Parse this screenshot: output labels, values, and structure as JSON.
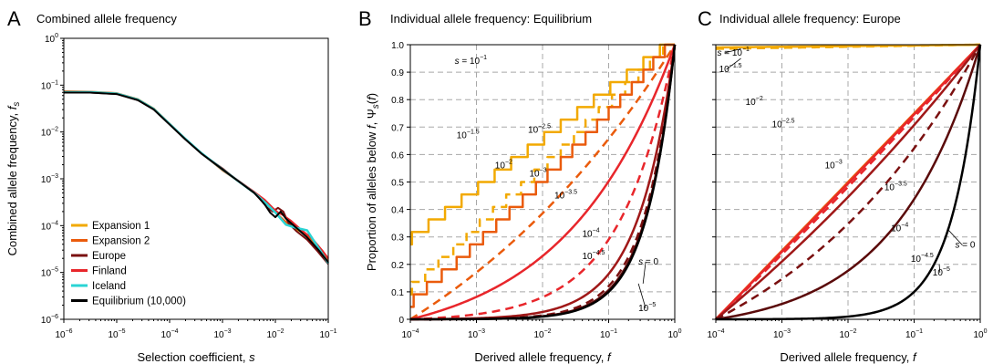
{
  "chart_data": [
    {
      "panel": "A",
      "type": "line",
      "title": "Combined allele frequency",
      "xlabel": "Selection coefficient, s",
      "ylabel": "Combined allele frequency, f",
      "ylabel_sub": "s",
      "x_scale": "log",
      "y_scale": "log",
      "xlim_exp": [
        -6,
        -1
      ],
      "ylim_exp": [
        -6,
        0
      ],
      "x_tick_exps": [
        -6,
        -5,
        -4,
        -3,
        -2,
        -1
      ],
      "y_tick_exps": [
        -6,
        -5,
        -4,
        -3,
        -2,
        -1,
        0
      ],
      "grid": false,
      "legend_position": "bottom-left",
      "series": [
        {
          "name": "Expansion 1",
          "color": "#f2a900",
          "width": 2,
          "log_x": [
            -6.0,
            -5.5,
            -5.0,
            -4.6,
            -4.3,
            -4.0,
            -3.7,
            -3.4,
            -3.0,
            -2.7,
            -2.4,
            -2.2,
            -2.0,
            -1.8,
            -1.6,
            -1.4,
            -1.2,
            -1.0
          ],
          "log_y": [
            -1.14,
            -1.15,
            -1.18,
            -1.3,
            -1.5,
            -1.83,
            -2.15,
            -2.45,
            -2.8,
            -3.05,
            -3.3,
            -3.5,
            -3.72,
            -3.95,
            -4.08,
            -4.2,
            -4.45,
            -4.75
          ]
        },
        {
          "name": "Expansion 2",
          "color": "#ea5b0c",
          "width": 2,
          "log_x": [
            -6.0,
            -5.5,
            -5.0,
            -4.6,
            -4.3,
            -4.0,
            -3.7,
            -3.4,
            -3.0,
            -2.7,
            -2.4,
            -2.2,
            -2.0,
            -1.8,
            -1.6,
            -1.4,
            -1.2,
            -1.0
          ],
          "log_y": [
            -1.13,
            -1.14,
            -1.17,
            -1.3,
            -1.5,
            -1.82,
            -2.15,
            -2.45,
            -2.82,
            -3.05,
            -3.3,
            -3.48,
            -3.72,
            -3.92,
            -4.05,
            -4.2,
            -4.5,
            -4.72
          ]
        },
        {
          "name": "Europe",
          "color": "#7a1010",
          "width": 2,
          "log_x": [
            -6.0,
            -5.5,
            -5.0,
            -4.6,
            -4.3,
            -4.0,
            -3.7,
            -3.4,
            -3.0,
            -2.7,
            -2.4,
            -2.25,
            -2.15,
            -2.05,
            -1.95,
            -1.85,
            -1.75,
            -1.6,
            -1.4,
            -1.2,
            -1.0
          ],
          "log_y": [
            -1.16,
            -1.16,
            -1.19,
            -1.32,
            -1.52,
            -1.84,
            -2.16,
            -2.46,
            -2.78,
            -3.05,
            -3.3,
            -3.48,
            -3.62,
            -3.7,
            -3.62,
            -3.7,
            -3.95,
            -4.12,
            -4.3,
            -4.55,
            -4.82
          ]
        },
        {
          "name": "Finland",
          "color": "#e8262b",
          "width": 2,
          "log_x": [
            -6.0,
            -5.5,
            -5.0,
            -4.6,
            -4.3,
            -4.0,
            -3.7,
            -3.4,
            -3.0,
            -2.7,
            -2.4,
            -2.2,
            -2.05,
            -1.95,
            -1.85,
            -1.7,
            -1.5,
            -1.3,
            -1.1,
            -1.0
          ],
          "log_y": [
            -1.15,
            -1.15,
            -1.18,
            -1.31,
            -1.51,
            -1.83,
            -2.15,
            -2.45,
            -2.8,
            -3.04,
            -3.28,
            -3.45,
            -3.62,
            -3.72,
            -3.78,
            -3.9,
            -4.1,
            -4.28,
            -4.55,
            -4.7
          ]
        },
        {
          "name": "Iceland",
          "color": "#2ad4d4",
          "width": 2.5,
          "log_x": [
            -6.0,
            -5.5,
            -5.0,
            -4.6,
            -4.3,
            -4.0,
            -3.7,
            -3.4,
            -3.0,
            -2.7,
            -2.4,
            -2.2,
            -2.0,
            -1.8,
            -1.6,
            -1.4,
            -1.2,
            -1.0
          ],
          "log_y": [
            -1.15,
            -1.15,
            -1.18,
            -1.31,
            -1.51,
            -1.83,
            -2.15,
            -2.45,
            -2.8,
            -3.05,
            -3.3,
            -3.5,
            -3.72,
            -3.98,
            -4.05,
            -4.1,
            -4.45,
            -4.8
          ]
        },
        {
          "name": "Equilibrium (10,000)",
          "color": "#000000",
          "width": 2,
          "log_x": [
            -6.0,
            -5.5,
            -5.0,
            -4.6,
            -4.3,
            -4.0,
            -3.7,
            -3.4,
            -3.0,
            -2.7,
            -2.4,
            -2.3,
            -2.2,
            -2.1,
            -2.0,
            -1.9,
            -1.8,
            -1.6,
            -1.4,
            -1.2,
            -1.0
          ],
          "log_y": [
            -1.16,
            -1.16,
            -1.19,
            -1.32,
            -1.52,
            -1.84,
            -2.16,
            -2.46,
            -2.8,
            -3.05,
            -3.3,
            -3.42,
            -3.55,
            -3.72,
            -3.82,
            -3.7,
            -3.85,
            -4.05,
            -4.25,
            -4.5,
            -4.78
          ]
        }
      ]
    },
    {
      "panel": "B",
      "type": "line",
      "title": "Individual allele frequency: Equilibrium",
      "xlabel": "Derived allele frequency, f",
      "ylabel": "Proportion of alleles below f, Ψ",
      "ylabel_sub": "s",
      "ylabel_tail": "(f)",
      "x_scale": "log",
      "y_scale": "linear",
      "xlim_exp": [
        -4,
        0
      ],
      "ylim": [
        0,
        1
      ],
      "x_tick_exps": [
        -4,
        -3,
        -2,
        -1,
        0
      ],
      "y_ticks": [
        "0",
        "0.1",
        "0.2",
        "0.3",
        "0.4",
        "0.5",
        "0.6",
        "0.7",
        "0.8",
        "0.9",
        "1.0"
      ],
      "grid": true,
      "curve_form": "y = (f^k - 0.0001^k) / (1 - 0.0001^k); k = 1 / (1 + 10^(log_s - c))",
      "series": [
        {
          "name": "s = 10^-1",
          "log_s": -1,
          "c": -3.45,
          "color": "#f2a900",
          "dash": false,
          "width": 2.5,
          "step": true,
          "min_y": 0.27
        },
        {
          "name": "s = 10^-1.5",
          "log_s": -1.5,
          "c": -3.45,
          "color": "#f2a900",
          "dash": true,
          "width": 2.5,
          "step": true,
          "min_y": 0.09
        },
        {
          "name": "s = 10^-2",
          "log_s": -2,
          "c": -3.45,
          "color": "#ea5b0c",
          "dash": false,
          "width": 2.5,
          "step": true,
          "min_y": 0.04
        },
        {
          "name": "s = 10^-2.5",
          "log_s": -2.5,
          "c": -3.45,
          "color": "#ea5b0c",
          "dash": true,
          "width": 2.5,
          "step": false,
          "min_y": 0.0
        },
        {
          "name": "s = 10^-3",
          "log_s": -3,
          "c": -3.45,
          "color": "#e8262b",
          "dash": false,
          "width": 2.5,
          "step": false,
          "min_y": 0.0
        },
        {
          "name": "s = 10^-3.5",
          "log_s": -3.5,
          "c": -3.45,
          "color": "#e8262b",
          "dash": true,
          "width": 2.5,
          "step": false,
          "min_y": 0.0
        },
        {
          "name": "s = 10^-4",
          "log_s": -4,
          "c": -3.45,
          "color": "#a01818",
          "dash": false,
          "width": 2.5,
          "step": false,
          "min_y": 0.0
        },
        {
          "name": "s = 10^-4.5",
          "log_s": -4.5,
          "c": -3.45,
          "color": "#7a1010",
          "dash": true,
          "width": 2.5,
          "step": false,
          "min_y": 0.0
        },
        {
          "name": "s = 10^-5",
          "log_s": -5,
          "c": -3.45,
          "color": "#5a0a0a",
          "dash": false,
          "width": 2.5,
          "step": false,
          "min_y": 0.0
        },
        {
          "name": "s = 0",
          "log_s": -20,
          "c": -3.45,
          "color": "#000000",
          "dash": false,
          "width": 2.5,
          "step": false,
          "min_y": 0.0
        }
      ],
      "annotations": [
        {
          "base": "s = 10",
          "exp": "−1",
          "x_exp": -3.33,
          "y": 0.93,
          "leader": false
        },
        {
          "base": "10",
          "exp": "−1.5",
          "x_exp": -3.3,
          "y": 0.66,
          "leader": false
        },
        {
          "base": "10",
          "exp": "−2",
          "x_exp": -2.72,
          "y": 0.55,
          "leader": false
        },
        {
          "base": "10",
          "exp": "−2.5",
          "x_exp": -2.22,
          "y": 0.68,
          "leader": false
        },
        {
          "base": "10",
          "exp": "−3",
          "x_exp": -2.2,
          "y": 0.52,
          "leader": false
        },
        {
          "base": "10",
          "exp": "−3.5",
          "x_exp": -1.82,
          "y": 0.44,
          "leader": false
        },
        {
          "base": "10",
          "exp": "−4",
          "x_exp": -1.4,
          "y": 0.3,
          "leader": false
        },
        {
          "base": "10",
          "exp": "−4.5",
          "x_exp": -1.4,
          "y": 0.22,
          "leader": false
        },
        {
          "base": "s = 0",
          "exp": "",
          "x_exp": -0.55,
          "y": 0.2,
          "leader": true,
          "lx_exp": -0.48,
          "ly": 0.13
        },
        {
          "base": "10",
          "exp": "−5",
          "x_exp": -0.55,
          "y": 0.03,
          "leader": true,
          "lx_exp": -0.55,
          "ly": 0.13
        }
      ]
    },
    {
      "panel": "C",
      "type": "line",
      "title": "Individual allele frequency: Europe",
      "xlabel": "Derived allele frequency, f",
      "ylabel": "",
      "x_scale": "log",
      "y_scale": "linear",
      "xlim_exp": [
        -4,
        0
      ],
      "ylim": [
        0,
        1
      ],
      "x_tick_exps": [
        -4,
        -3,
        -2,
        -1,
        0
      ],
      "y_ticks": [],
      "grid": true,
      "curve_form": "y = (f^k - 0.0001^k) / (1 - 0.0001^k); k = 1 / (1 + 10^(log_s - c))",
      "series": [
        {
          "name": "s = 10^-1",
          "log_s": -1,
          "c": -5.3,
          "color": "#f2a900",
          "dash": false,
          "width": 2.5,
          "step": false,
          "min_y": 0.99
        },
        {
          "name": "s = 10^-1.5",
          "log_s": -1.5,
          "c": -5.3,
          "color": "#f2a900",
          "dash": true,
          "width": 2.5,
          "step": false,
          "min_y": 0.985
        },
        {
          "name": "s = 10^-2",
          "log_s": -2,
          "c": -5.3,
          "color": "#ea5b0c",
          "dash": false,
          "width": 2.5,
          "step": false,
          "min_y": 0.0
        },
        {
          "name": "s = 10^-2.5",
          "log_s": -2.5,
          "c": -5.3,
          "color": "#ea5b0c",
          "dash": true,
          "width": 2.5,
          "step": false,
          "min_y": 0.0
        },
        {
          "name": "s = 10^-3",
          "log_s": -3,
          "c": -5.3,
          "color": "#e8262b",
          "dash": false,
          "width": 2.5,
          "step": false,
          "min_y": 0.0
        },
        {
          "name": "s = 10^-3.5",
          "log_s": -3.5,
          "c": -5.3,
          "color": "#e8262b",
          "dash": true,
          "width": 2.5,
          "step": false,
          "min_y": 0.0
        },
        {
          "name": "s = 10^-4",
          "log_s": -4,
          "c": -5.3,
          "color": "#a01818",
          "dash": false,
          "width": 2.5,
          "step": false,
          "min_y": 0.0
        },
        {
          "name": "s = 10^-4.5",
          "log_s": -4.5,
          "c": -5.3,
          "color": "#7a1010",
          "dash": true,
          "width": 2.5,
          "step": false,
          "min_y": 0.0
        },
        {
          "name": "s = 10^-5",
          "log_s": -5,
          "c": -5.3,
          "color": "#5a0a0a",
          "dash": false,
          "width": 2.5,
          "step": false,
          "min_y": 0.0
        },
        {
          "name": "s = 0",
          "log_s": -20,
          "c": -5.3,
          "color": "#000000",
          "dash": false,
          "width": 2.5,
          "step": false,
          "min_y": 0.0
        }
      ],
      "annotations": [
        {
          "base": "s = 10",
          "exp": "−1",
          "x_exp": -3.98,
          "y": 0.96,
          "leader": true,
          "lx_exp": -3.62,
          "ly": 0.985
        },
        {
          "base": "10",
          "exp": "−1.5",
          "x_exp": -3.95,
          "y": 0.9,
          "leader": true,
          "lx_exp": -3.62,
          "ly": 0.95
        },
        {
          "base": "10",
          "exp": "−2",
          "x_exp": -3.55,
          "y": 0.78,
          "leader": false
        },
        {
          "base": "10",
          "exp": "−2.5",
          "x_exp": -3.15,
          "y": 0.7,
          "leader": false
        },
        {
          "base": "10",
          "exp": "−3",
          "x_exp": -2.35,
          "y": 0.55,
          "leader": false
        },
        {
          "base": "10",
          "exp": "−3.5",
          "x_exp": -1.45,
          "y": 0.47,
          "leader": false
        },
        {
          "base": "10",
          "exp": "−4",
          "x_exp": -1.35,
          "y": 0.32,
          "leader": false
        },
        {
          "base": "10",
          "exp": "−4.5",
          "x_exp": -1.05,
          "y": 0.21,
          "leader": false
        },
        {
          "base": "s = 0",
          "exp": "",
          "x_exp": -0.38,
          "y": 0.26,
          "leader": true,
          "lx_exp": -0.5,
          "ly": 0.33
        },
        {
          "base": "10",
          "exp": "−5",
          "x_exp": -0.72,
          "y": 0.16,
          "leader": true,
          "lx_exp": -0.62,
          "ly": 0.2
        }
      ]
    }
  ]
}
